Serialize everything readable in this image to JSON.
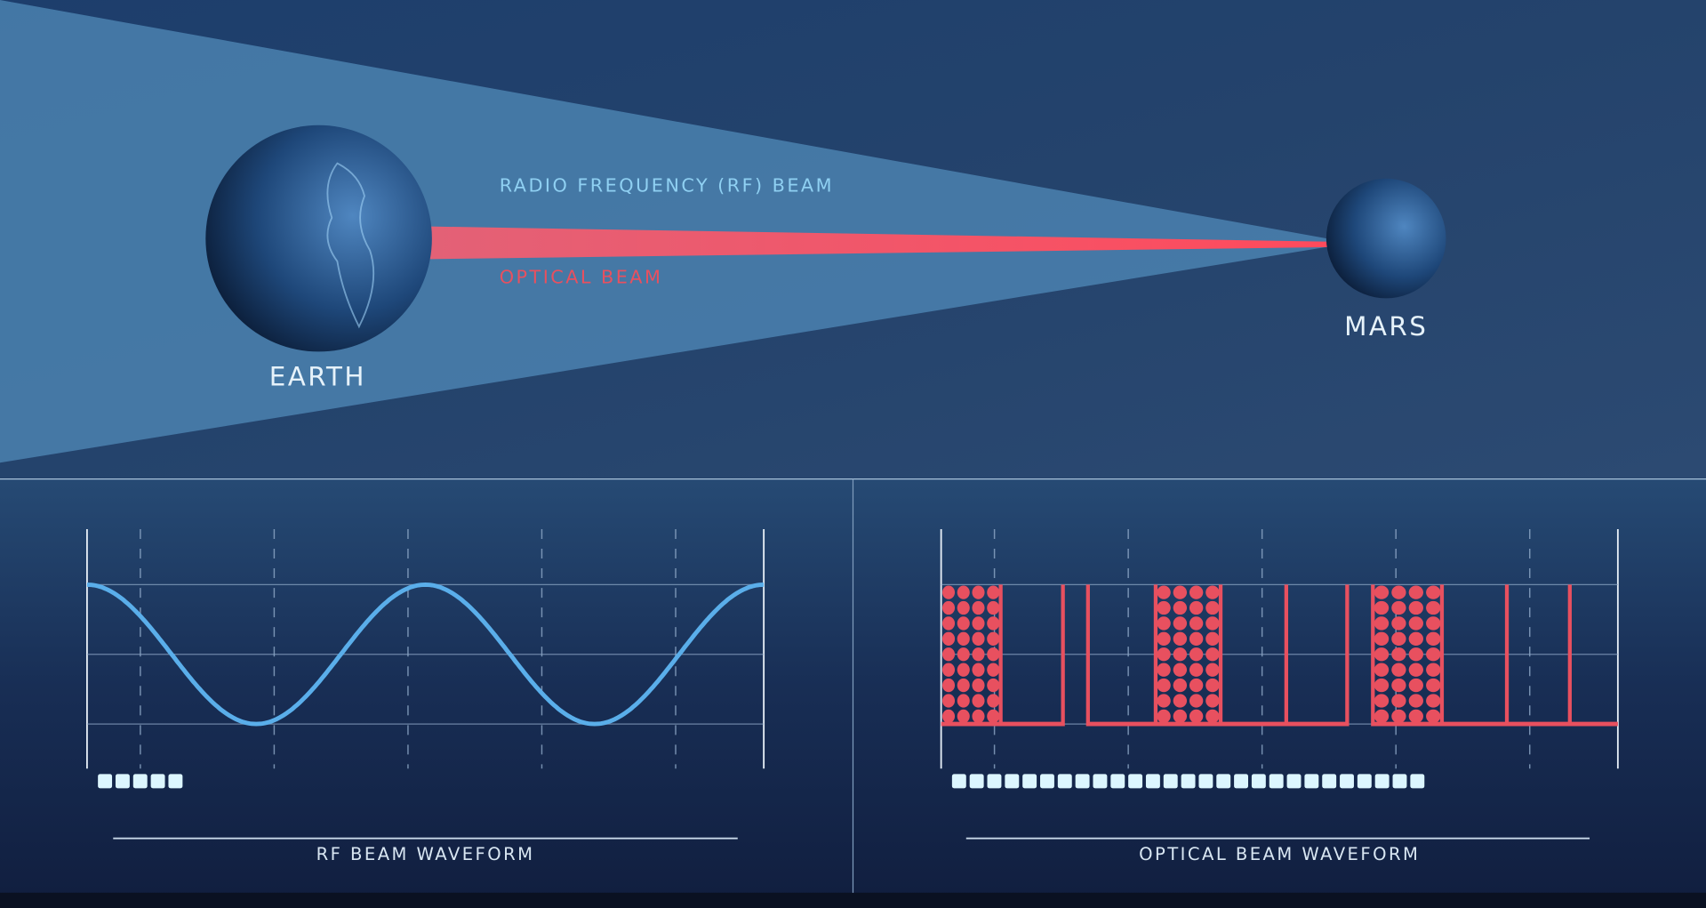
{
  "top": {
    "earth_label": "EARTH",
    "mars_label": "MARS",
    "rf_beam_label": "RADIO FREQUENCY (RF) BEAM",
    "optical_beam_label": "OPTICAL BEAM"
  },
  "colors": {
    "rf_blue": "#5aaeea",
    "optical_red": "#e8505f",
    "rf_label": "#8fd0f2",
    "optical_label": "#e8505f",
    "text_white": "#e6f2fa",
    "counter_square": "#dcf6ff"
  },
  "chart_data": [
    {
      "type": "line",
      "title": "RF BEAM WAVEFORM",
      "waveform": "cosine",
      "cycles": 2,
      "amplitude_range": [
        -1,
        1
      ],
      "grid": true,
      "counter_squares": 5
    },
    {
      "type": "line",
      "title": "OPTICAL BEAM WAVEFORM",
      "waveform": "pulse",
      "time_range": [
        0,
        100
      ],
      "levels": [
        0,
        1
      ],
      "pulse_edges": [
        8.8,
        18,
        21.7,
        31.7,
        41.3,
        51,
        60,
        63.8,
        74,
        83.6,
        92.9
      ],
      "filled_pulses": [
        [
          0,
          8.8
        ],
        [
          31.7,
          41.3
        ],
        [
          63.8,
          74
        ]
      ],
      "baseline_gaps": [
        [
          18,
          21.7
        ],
        [
          60,
          63.8
        ]
      ],
      "dot_grid": {
        "columns": 4,
        "rows": 9
      },
      "grid": true,
      "counter_squares": 27
    }
  ]
}
